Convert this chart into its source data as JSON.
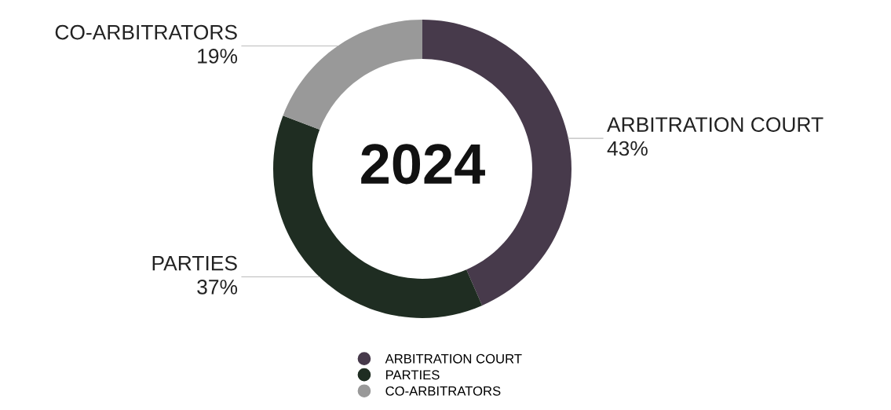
{
  "chart_data": {
    "type": "donut",
    "categories": [
      "ARBITRATION COURT",
      "PARTIES",
      "CO-ARBITRATORS"
    ],
    "values": [
      43,
      37,
      19
    ],
    "value_labels": [
      "43%",
      "37%",
      "19%"
    ],
    "colors": [
      "#473a4b",
      "#1f2d22",
      "#999999"
    ],
    "annotations": [
      "2024"
    ],
    "legend": "bottom"
  }
}
